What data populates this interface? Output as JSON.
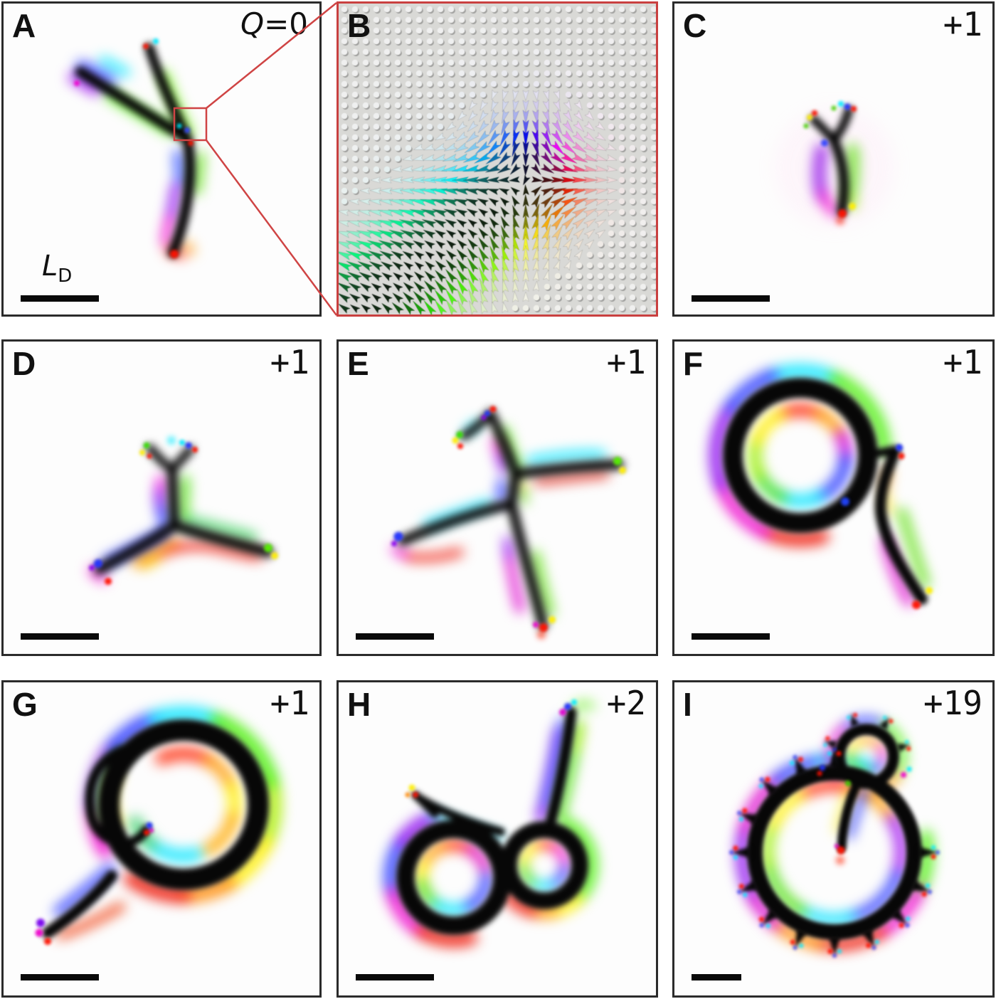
{
  "figure": {
    "background": "#ffffff",
    "panel_border_color": "#2b2b2b",
    "inset_border_color": "#c94040",
    "scalebar_color": "#0a0a0a"
  },
  "panels": [
    {
      "letter": "A",
      "charge_label": {
        "symbol": "Q",
        "value": "=0"
      },
      "scalebar_label": {
        "main": "L",
        "sub": "D"
      },
      "has_scalebar": true
    },
    {
      "letter": "B",
      "content": "spin-texture-vector-field",
      "has_scalebar": false
    },
    {
      "letter": "C",
      "charge": "+1",
      "has_scalebar": true
    },
    {
      "letter": "D",
      "charge": "+1",
      "has_scalebar": true
    },
    {
      "letter": "E",
      "charge": "+1",
      "has_scalebar": true
    },
    {
      "letter": "F",
      "charge": "+1",
      "has_scalebar": true
    },
    {
      "letter": "G",
      "charge": "+1",
      "has_scalebar": true
    },
    {
      "letter": "H",
      "charge": "+2",
      "has_scalebar": true
    },
    {
      "letter": "I",
      "charge": "+19",
      "has_scalebar": true
    }
  ],
  "palette": {
    "red": "#ee1100",
    "orange": "#ff8800",
    "yellow": "#ffee00",
    "green": "#44dd00",
    "cyan": "#00e5ff",
    "blue": "#2233ff",
    "purple": "#8800ee",
    "magenta": "#ee00cc"
  }
}
